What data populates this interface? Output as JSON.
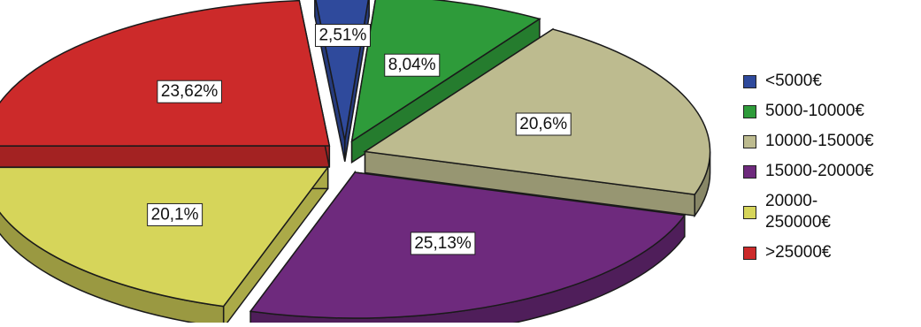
{
  "chart_data": {
    "type": "pie",
    "title": "",
    "three_d": true,
    "exploded": true,
    "legend_position": "right",
    "slices": [
      {
        "name": "<5000€",
        "value": 2.51,
        "label": "2,51%",
        "color": "#2f4a9c"
      },
      {
        "name": "5000-10000€",
        "value": 8.04,
        "label": "8,04%",
        "color": "#2e9b3a"
      },
      {
        "name": "10000-15000€",
        "value": 20.6,
        "label": "20,6%",
        "color": "#bdbb8f"
      },
      {
        "name": "15000-20000€",
        "value": 25.13,
        "label": "25,13%",
        "color": "#6e2a7d"
      },
      {
        "name": "20000-250000€",
        "value": 20.1,
        "label": "20,1%",
        "color": "#d6d55a"
      },
      {
        "name": ">25000€",
        "value": 23.62,
        "label": "23,62%",
        "color": "#cc2a2a"
      }
    ]
  }
}
